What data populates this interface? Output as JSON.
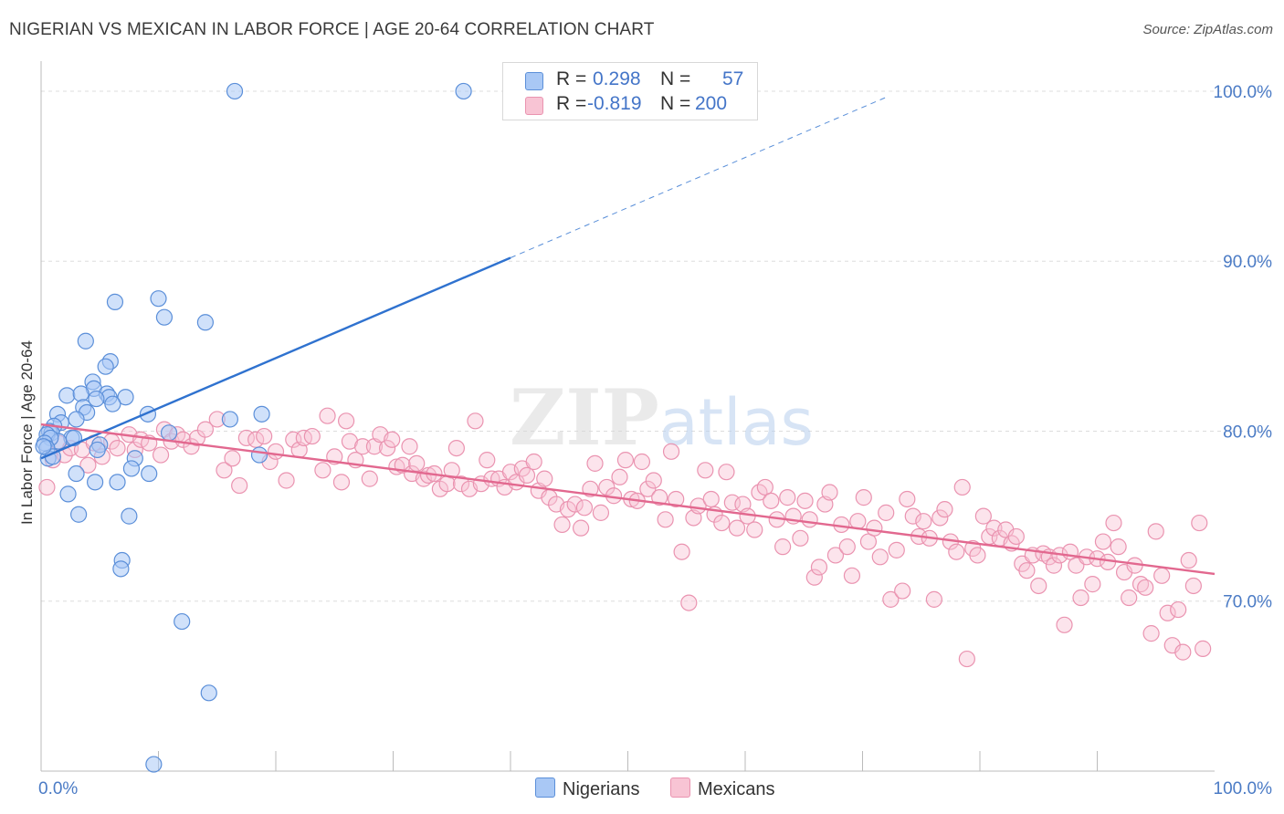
{
  "header": {
    "title": "NIGERIAN VS MEXICAN IN LABOR FORCE | AGE 20-64 CORRELATION CHART",
    "source": "Source: ZipAtlas.com"
  },
  "watermark": {
    "part1": "ZIP",
    "part2": "atlas"
  },
  "colors": {
    "blue_fill": "#a9c8f5",
    "blue_stroke": "#5b8fd9",
    "blue_line": "#2f72cf",
    "pink_fill": "#f8c4d4",
    "pink_stroke": "#ea93b0",
    "pink_line": "#e2688f",
    "axis_text": "#4b7bc5",
    "grid": "#dddddd"
  },
  "legend": {
    "rows": [
      {
        "r_label": "R =",
        "r_value": "0.298",
        "n_label": "N =",
        "n_value": "57",
        "color": "#a9c8f5"
      },
      {
        "r_label": "R =",
        "r_value": "-0.819",
        "n_label": "N =",
        "n_value": "200",
        "color": "#f8c4d4"
      }
    ]
  },
  "bottom_legend": {
    "series1": "Nigerians",
    "series2": "Mexicans"
  },
  "chart_data": {
    "type": "scatter",
    "title": "NIGERIAN VS MEXICAN IN LABOR FORCE | AGE 20-64 CORRELATION CHART",
    "xlabel": "",
    "ylabel": "In Labor Force | Age 20-64",
    "xlim": [
      0,
      100
    ],
    "ylim": [
      60,
      101.5
    ],
    "x_tick_labels": [
      "0.0%",
      "100.0%"
    ],
    "y_ticks": [
      70,
      80,
      90,
      100
    ],
    "y_tick_labels": [
      "70.0%",
      "80.0%",
      "90.0%",
      "100.0%"
    ],
    "grid": true,
    "legend_position": "top-center",
    "series": [
      {
        "name": "Nigerians",
        "color": "#a9c8f5",
        "trend": {
          "x0": 0,
          "y0": 78.4,
          "x1": 40,
          "y1": 90.2,
          "dashed_to_x": 72
        },
        "points": [
          [
            16.5,
            100
          ],
          [
            36,
            100
          ],
          [
            10,
            87.8
          ],
          [
            6.3,
            87.6
          ],
          [
            10.5,
            86.7
          ],
          [
            14,
            86.4
          ],
          [
            3.8,
            85.3
          ],
          [
            5.9,
            84.1
          ],
          [
            5.5,
            83.8
          ],
          [
            4.4,
            82.9
          ],
          [
            4.5,
            82.5
          ],
          [
            2.2,
            82.1
          ],
          [
            3.4,
            82.2
          ],
          [
            5.6,
            82.2
          ],
          [
            5.8,
            82.0
          ],
          [
            4.7,
            81.9
          ],
          [
            7.2,
            82.0
          ],
          [
            3.6,
            81.4
          ],
          [
            6.1,
            81.6
          ],
          [
            1.4,
            81.0
          ],
          [
            3.9,
            81.1
          ],
          [
            9.1,
            81.0
          ],
          [
            16.1,
            80.7
          ],
          [
            18.8,
            81.0
          ],
          [
            1.7,
            80.5
          ],
          [
            3.0,
            80.7
          ],
          [
            1.1,
            80.3
          ],
          [
            0.7,
            80.0
          ],
          [
            0.9,
            79.9
          ],
          [
            2.6,
            79.6
          ],
          [
            0.5,
            79.8
          ],
          [
            1.5,
            79.4
          ],
          [
            0.8,
            79.6
          ],
          [
            2.8,
            79.6
          ],
          [
            10.9,
            79.9
          ],
          [
            5.0,
            79.2
          ],
          [
            0.3,
            79.3
          ],
          [
            0.5,
            79.0
          ],
          [
            4.8,
            78.9
          ],
          [
            0.6,
            78.4
          ],
          [
            1.0,
            78.5
          ],
          [
            8.0,
            78.4
          ],
          [
            18.6,
            78.6
          ],
          [
            3.0,
            77.5
          ],
          [
            7.7,
            77.8
          ],
          [
            9.2,
            77.5
          ],
          [
            4.6,
            77.0
          ],
          [
            6.5,
            77.0
          ],
          [
            2.3,
            76.3
          ],
          [
            3.2,
            75.1
          ],
          [
            7.5,
            75.0
          ],
          [
            6.9,
            72.4
          ],
          [
            6.8,
            71.9
          ],
          [
            12.0,
            68.8
          ],
          [
            14.3,
            64.6
          ],
          [
            9.6,
            60.4
          ],
          [
            0.2,
            79.1
          ]
        ]
      },
      {
        "name": "Mexicans",
        "color": "#f8c4d4",
        "trend": {
          "x0": 0,
          "y0": 80.4,
          "x1": 100,
          "y1": 71.6
        },
        "points": [
          [
            0.5,
            76.7
          ],
          [
            1.0,
            78.3
          ],
          [
            1.5,
            79.3
          ],
          [
            2.0,
            78.6
          ],
          [
            2.5,
            79.0
          ],
          [
            3.5,
            78.9
          ],
          [
            4.0,
            78.0
          ],
          [
            4.5,
            79.3
          ],
          [
            5.2,
            78.5
          ],
          [
            6.0,
            79.4
          ],
          [
            6.5,
            79.0
          ],
          [
            7.5,
            79.8
          ],
          [
            8.0,
            78.9
          ],
          [
            8.5,
            79.5
          ],
          [
            9.2,
            79.3
          ],
          [
            10.2,
            78.6
          ],
          [
            10.5,
            80.1
          ],
          [
            11.1,
            79.4
          ],
          [
            11.6,
            79.8
          ],
          [
            12.1,
            79.5
          ],
          [
            12.8,
            79.1
          ],
          [
            13.3,
            79.6
          ],
          [
            14.0,
            80.1
          ],
          [
            15.0,
            80.7
          ],
          [
            15.6,
            77.7
          ],
          [
            16.3,
            78.4
          ],
          [
            16.9,
            76.8
          ],
          [
            17.5,
            79.6
          ],
          [
            18.3,
            79.5
          ],
          [
            19.0,
            79.7
          ],
          [
            19.5,
            78.2
          ],
          [
            20.0,
            78.8
          ],
          [
            20.9,
            77.1
          ],
          [
            21.5,
            79.5
          ],
          [
            22.0,
            78.9
          ],
          [
            22.4,
            79.6
          ],
          [
            23.1,
            79.7
          ],
          [
            24.0,
            77.7
          ],
          [
            24.4,
            80.9
          ],
          [
            25.0,
            78.5
          ],
          [
            25.6,
            77.0
          ],
          [
            26.0,
            80.6
          ],
          [
            26.3,
            79.4
          ],
          [
            26.8,
            78.3
          ],
          [
            27.4,
            79.1
          ],
          [
            28.0,
            77.2
          ],
          [
            28.4,
            79.1
          ],
          [
            28.9,
            79.8
          ],
          [
            29.5,
            79.0
          ],
          [
            29.9,
            79.5
          ],
          [
            30.3,
            77.9
          ],
          [
            30.8,
            78.0
          ],
          [
            31.4,
            79.1
          ],
          [
            31.6,
            77.5
          ],
          [
            32.0,
            78.1
          ],
          [
            32.6,
            77.2
          ],
          [
            33.0,
            77.4
          ],
          [
            33.5,
            77.5
          ],
          [
            34.0,
            76.6
          ],
          [
            34.6,
            76.9
          ],
          [
            35.0,
            77.7
          ],
          [
            35.4,
            79.0
          ],
          [
            35.8,
            76.9
          ],
          [
            36.5,
            76.6
          ],
          [
            37.0,
            80.6
          ],
          [
            37.5,
            76.9
          ],
          [
            38.0,
            78.3
          ],
          [
            38.4,
            77.2
          ],
          [
            39.0,
            77.2
          ],
          [
            39.5,
            76.7
          ],
          [
            40.0,
            77.6
          ],
          [
            40.5,
            77.0
          ],
          [
            41.0,
            77.8
          ],
          [
            41.4,
            77.4
          ],
          [
            42.0,
            78.2
          ],
          [
            42.4,
            76.5
          ],
          [
            42.9,
            77.2
          ],
          [
            43.3,
            76.1
          ],
          [
            43.9,
            75.7
          ],
          [
            44.4,
            74.5
          ],
          [
            44.9,
            75.4
          ],
          [
            45.5,
            75.7
          ],
          [
            46.0,
            74.3
          ],
          [
            46.3,
            75.5
          ],
          [
            46.8,
            76.6
          ],
          [
            47.2,
            78.1
          ],
          [
            47.7,
            75.2
          ],
          [
            48.2,
            76.7
          ],
          [
            48.8,
            76.2
          ],
          [
            49.3,
            77.3
          ],
          [
            49.8,
            78.3
          ],
          [
            50.3,
            76.0
          ],
          [
            50.8,
            75.9
          ],
          [
            51.2,
            78.2
          ],
          [
            51.7,
            76.6
          ],
          [
            52.2,
            77.1
          ],
          [
            52.7,
            76.1
          ],
          [
            53.2,
            74.8
          ],
          [
            53.7,
            78.8
          ],
          [
            54.1,
            76.0
          ],
          [
            54.6,
            72.9
          ],
          [
            55.2,
            69.9
          ],
          [
            55.6,
            74.9
          ],
          [
            56.0,
            75.6
          ],
          [
            56.6,
            77.7
          ],
          [
            57.1,
            76.0
          ],
          [
            57.4,
            75.1
          ],
          [
            58.0,
            74.6
          ],
          [
            58.4,
            77.6
          ],
          [
            58.9,
            75.8
          ],
          [
            59.3,
            74.3
          ],
          [
            59.8,
            75.7
          ],
          [
            60.2,
            75.0
          ],
          [
            60.8,
            74.2
          ],
          [
            61.2,
            76.4
          ],
          [
            61.7,
            76.7
          ],
          [
            62.2,
            75.9
          ],
          [
            62.7,
            74.8
          ],
          [
            63.2,
            73.2
          ],
          [
            63.6,
            76.1
          ],
          [
            64.1,
            75.0
          ],
          [
            64.7,
            73.7
          ],
          [
            65.1,
            75.9
          ],
          [
            65.5,
            74.8
          ],
          [
            65.9,
            71.4
          ],
          [
            66.3,
            72.0
          ],
          [
            66.8,
            75.7
          ],
          [
            67.2,
            76.4
          ],
          [
            67.7,
            72.7
          ],
          [
            68.2,
            74.5
          ],
          [
            68.7,
            73.2
          ],
          [
            69.1,
            71.5
          ],
          [
            69.6,
            74.7
          ],
          [
            70.1,
            76.1
          ],
          [
            70.5,
            73.5
          ],
          [
            71.0,
            74.3
          ],
          [
            71.5,
            72.6
          ],
          [
            72.0,
            75.2
          ],
          [
            72.4,
            70.1
          ],
          [
            72.9,
            73.0
          ],
          [
            73.4,
            70.6
          ],
          [
            73.8,
            76.0
          ],
          [
            74.3,
            75.0
          ],
          [
            74.8,
            73.8
          ],
          [
            75.2,
            74.7
          ],
          [
            75.7,
            73.7
          ],
          [
            76.1,
            70.1
          ],
          [
            76.6,
            74.9
          ],
          [
            77.0,
            75.4
          ],
          [
            77.5,
            73.5
          ],
          [
            78.0,
            72.9
          ],
          [
            78.5,
            76.7
          ],
          [
            78.9,
            66.6
          ],
          [
            79.4,
            73.1
          ],
          [
            79.8,
            72.7
          ],
          [
            80.3,
            75.0
          ],
          [
            80.8,
            73.8
          ],
          [
            81.2,
            74.3
          ],
          [
            81.7,
            73.7
          ],
          [
            82.2,
            74.2
          ],
          [
            82.7,
            73.4
          ],
          [
            83.1,
            73.8
          ],
          [
            83.6,
            72.2
          ],
          [
            84.0,
            71.8
          ],
          [
            84.5,
            72.7
          ],
          [
            85.0,
            70.9
          ],
          [
            85.4,
            72.8
          ],
          [
            85.9,
            72.6
          ],
          [
            86.3,
            72.1
          ],
          [
            86.8,
            72.7
          ],
          [
            87.2,
            68.6
          ],
          [
            87.7,
            72.9
          ],
          [
            88.2,
            72.1
          ],
          [
            88.6,
            70.2
          ],
          [
            89.1,
            72.6
          ],
          [
            89.6,
            71.0
          ],
          [
            90.0,
            72.5
          ],
          [
            90.5,
            73.5
          ],
          [
            90.9,
            72.3
          ],
          [
            91.4,
            74.6
          ],
          [
            91.8,
            73.2
          ],
          [
            92.3,
            71.7
          ],
          [
            92.7,
            70.2
          ],
          [
            93.2,
            72.1
          ],
          [
            93.7,
            71.0
          ],
          [
            94.1,
            70.8
          ],
          [
            94.6,
            68.1
          ],
          [
            95.0,
            74.1
          ],
          [
            95.5,
            71.5
          ],
          [
            96.0,
            69.3
          ],
          [
            96.4,
            67.4
          ],
          [
            96.9,
            69.5
          ],
          [
            97.3,
            67.0
          ],
          [
            97.8,
            72.4
          ],
          [
            98.2,
            70.9
          ],
          [
            98.7,
            74.6
          ],
          [
            99.0,
            67.2
          ]
        ]
      }
    ]
  }
}
